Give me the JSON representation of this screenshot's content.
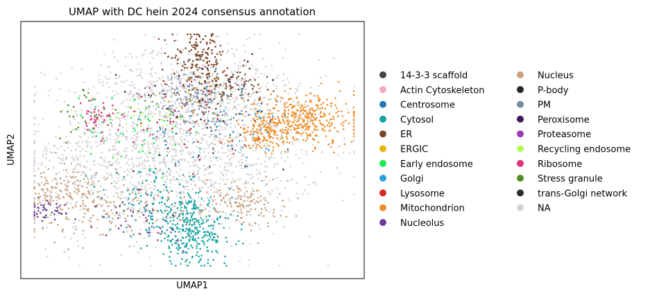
{
  "chart_data": {
    "type": "scatter",
    "title": "UMAP with DC hein 2024 consensus annotation",
    "xlabel": "UMAP1",
    "ylabel": "UMAP2",
    "xlim": [
      0,
      100
    ],
    "ylim": [
      0,
      100
    ],
    "ticks": "none",
    "grid": false,
    "legend_position": "right",
    "legend": [
      {
        "name": "14-3-3 scaffold",
        "color": "#444444"
      },
      {
        "name": "Actin Cytoskeleton",
        "color": "#f4a9c3"
      },
      {
        "name": "Centrosome",
        "color": "#1f77b4"
      },
      {
        "name": "Cytosol",
        "color": "#17a2a2"
      },
      {
        "name": "ER",
        "color": "#7b4627"
      },
      {
        "name": "ERGIC",
        "color": "#e5b50f"
      },
      {
        "name": "Early endosome",
        "color": "#1aeb4f"
      },
      {
        "name": "Golgi",
        "color": "#2aa1d8"
      },
      {
        "name": "Lysosome",
        "color": "#d62728"
      },
      {
        "name": "Mitochondrion",
        "color": "#ee8f2a"
      },
      {
        "name": "Nucleolus",
        "color": "#6a3d9a"
      },
      {
        "name": "Nucleus",
        "color": "#c8a07e"
      },
      {
        "name": "P-body",
        "color": "#262626"
      },
      {
        "name": "PM",
        "color": "#7b8aa3"
      },
      {
        "name": "Peroxisome",
        "color": "#3d1a5c"
      },
      {
        "name": "Proteasome",
        "color": "#9b3ab8"
      },
      {
        "name": "Recycling endosome",
        "color": "#b7f95a"
      },
      {
        "name": "Ribosome",
        "color": "#e0307f"
      },
      {
        "name": "Stress granule",
        "color": "#4f8f23"
      },
      {
        "name": "trans-Golgi network",
        "color": "#2b2b2b"
      },
      {
        "name": "NA",
        "color": "#d3d3d3"
      }
    ],
    "clusters": [
      {
        "name": "NA",
        "n": 1500,
        "cx": 48,
        "cy": 52,
        "sx": 20,
        "sy": 17
      },
      {
        "name": "NA",
        "n": 350,
        "cx": 50,
        "cy": 75,
        "sx": 12,
        "sy": 8
      },
      {
        "name": "NA",
        "n": 250,
        "cx": 22,
        "cy": 40,
        "sx": 12,
        "sy": 12
      },
      {
        "name": "Mitochondrion",
        "n": 380,
        "cx": 82,
        "cy": 62,
        "sx": 8,
        "sy": 5
      },
      {
        "name": "Mitochondrion",
        "n": 120,
        "cx": 71,
        "cy": 56,
        "sx": 4,
        "sy": 3
      },
      {
        "name": "Cytosol",
        "n": 300,
        "cx": 50,
        "cy": 18,
        "sx": 6,
        "sy": 6
      },
      {
        "name": "Cytosol",
        "n": 130,
        "cx": 40,
        "cy": 30,
        "sx": 7,
        "sy": 6
      },
      {
        "name": "ER",
        "n": 130,
        "cx": 52,
        "cy": 87,
        "sx": 4,
        "sy": 5
      },
      {
        "name": "ER",
        "n": 120,
        "cx": 58,
        "cy": 75,
        "sx": 6,
        "sy": 4
      },
      {
        "name": "Nucleus",
        "n": 140,
        "cx": 12,
        "cy": 33,
        "sx": 6,
        "sy": 6
      },
      {
        "name": "Nucleus",
        "n": 130,
        "cx": 65,
        "cy": 30,
        "sx": 6,
        "sy": 5
      },
      {
        "name": "Nucleus",
        "n": 120,
        "cx": 28,
        "cy": 28,
        "sx": 10,
        "sy": 6
      },
      {
        "name": "PM",
        "n": 170,
        "cx": 50,
        "cy": 67,
        "sx": 8,
        "sy": 6
      },
      {
        "name": "Nucleolus",
        "n": 40,
        "cx": 7,
        "cy": 26,
        "sx": 3,
        "sy": 2
      },
      {
        "name": "Nucleolus",
        "n": 30,
        "cx": 32,
        "cy": 25,
        "sx": 7,
        "sy": 4
      },
      {
        "name": "Ribosome",
        "n": 45,
        "cx": 22,
        "cy": 62,
        "sx": 2.5,
        "sy": 3
      },
      {
        "name": "Lysosome",
        "n": 45,
        "cx": 50,
        "cy": 60,
        "sx": 12,
        "sy": 10
      },
      {
        "name": "Golgi",
        "n": 45,
        "cx": 62,
        "cy": 60,
        "sx": 9,
        "sy": 8
      },
      {
        "name": "Early endosome",
        "n": 45,
        "cx": 33,
        "cy": 57,
        "sx": 9,
        "sy": 9
      },
      {
        "name": "Stress granule",
        "n": 30,
        "cx": 20,
        "cy": 64,
        "sx": 5,
        "sy": 5
      },
      {
        "name": "Recycling endosome",
        "n": 20,
        "cx": 38,
        "cy": 62,
        "sx": 5,
        "sy": 5
      },
      {
        "name": "ERGIC",
        "n": 12,
        "cx": 48,
        "cy": 72,
        "sx": 6,
        "sy": 4
      },
      {
        "name": "Actin Cytoskeleton",
        "n": 25,
        "cx": 45,
        "cy": 56,
        "sx": 14,
        "sy": 12
      },
      {
        "name": "Centrosome",
        "n": 12,
        "cx": 50,
        "cy": 62,
        "sx": 10,
        "sy": 8
      },
      {
        "name": "14-3-3 scaffold",
        "n": 10,
        "cx": 50,
        "cy": 58,
        "sx": 14,
        "sy": 10
      },
      {
        "name": "P-body",
        "n": 10,
        "cx": 48,
        "cy": 68,
        "sx": 10,
        "sy": 8
      },
      {
        "name": "trans-Golgi network",
        "n": 10,
        "cx": 50,
        "cy": 62,
        "sx": 12,
        "sy": 10
      },
      {
        "name": "Peroxisome",
        "n": 10,
        "cx": 62,
        "cy": 80,
        "sx": 6,
        "sy": 4
      },
      {
        "name": "Proteasome",
        "n": 12,
        "cx": 38,
        "cy": 18,
        "sx": 4,
        "sy": 3
      }
    ]
  }
}
